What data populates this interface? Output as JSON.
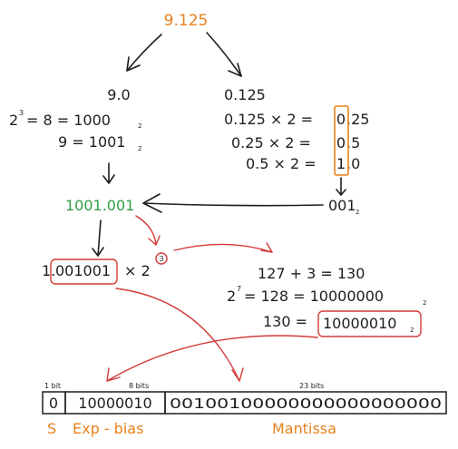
{
  "colors": {
    "ink": "#1e1e1e",
    "orange": "#e8801a",
    "green": "#2f9e44",
    "red": "#d43a3a"
  },
  "top": {
    "number": "9.125"
  },
  "integer_part": {
    "value": "9.0",
    "power": {
      "base": "2",
      "exp": "3",
      "rest": "= 8 = 1000",
      "sub": "2"
    },
    "nine": {
      "text": "9 = 1001",
      "sub": "2"
    }
  },
  "fraction_part": {
    "value": "0.125",
    "steps": [
      {
        "left": "0.125 × 2 = ",
        "digit": "0",
        "rest": ".25"
      },
      {
        "left": "0.25 × 2 = ",
        "digit": "0",
        "rest": ".5"
      },
      {
        "left": "0.5 × 2 = ",
        "digit": "1",
        "rest": ".0"
      }
    ],
    "result": {
      "text": "001",
      "sub": "2"
    }
  },
  "combined": "1001.001",
  "normalized": {
    "lead": "1.",
    "boxed": "001001",
    "times": "× 2",
    "exp": "3"
  },
  "exponent_calc": {
    "sum": "127 + 3 = 130",
    "power": {
      "base": "2",
      "exp": "7",
      "rest": "= 128 = 10000000",
      "sub": "2"
    },
    "final": {
      "left": "130 =",
      "boxed": "10000010",
      "sub": "2"
    }
  },
  "ieee": {
    "sign_bits_label": "1 bit",
    "exp_bits_label": "8 bits",
    "mantissa_bits_label": "23 bits",
    "sign": "0",
    "exponent": "10000010",
    "mantissa": "00100100000000000000000",
    "sign_caption": "S",
    "exp_caption": "Exp - bias",
    "mantissa_caption": "Mantissa"
  }
}
